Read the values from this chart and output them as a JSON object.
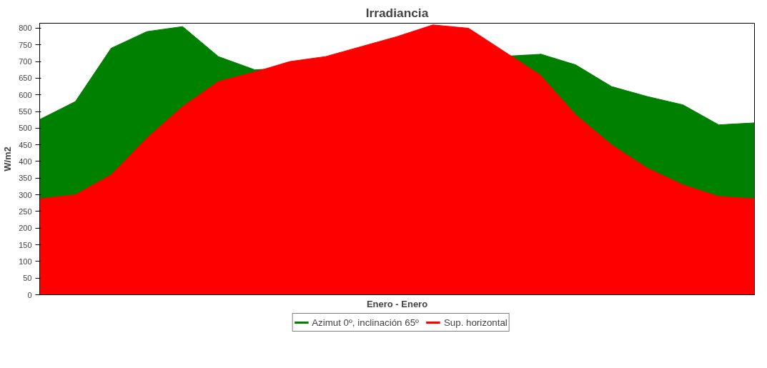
{
  "chart_data": {
    "type": "area",
    "title": "Irradiancia",
    "xlabel": "Enero - Enero",
    "ylabel": "W/m2",
    "categories": [
      null,
      null,
      null,
      null,
      null,
      null,
      null,
      null,
      null,
      null,
      null,
      null,
      null,
      null,
      null,
      null,
      null,
      null,
      null,
      null,
      null
    ],
    "series": [
      {
        "name": "Azimut 0º, inclinación 65º",
        "color": "#008000",
        "values": [
          526,
          580,
          740,
          790,
          805,
          715,
          676,
          null,
          null,
          null,
          null,
          null,
          null,
          null,
          723,
          690,
          625,
          595,
          570,
          510,
          516
        ]
      },
      {
        "name": "Sup. horizontal",
        "color": "#ff0000",
        "values": [
          288,
          300,
          360,
          470,
          565,
          640,
          668,
          700,
          715,
          745,
          775,
          810,
          800,
          730,
          660,
          540,
          450,
          380,
          330,
          295,
          288
        ]
      }
    ],
    "ylim": [
      0,
      815
    ],
    "yticks": [
      0,
      50,
      100,
      150,
      200,
      250,
      300,
      350,
      400,
      450,
      500,
      550,
      600,
      650,
      700,
      750,
      800
    ],
    "grid": false,
    "legend": "bottom"
  }
}
